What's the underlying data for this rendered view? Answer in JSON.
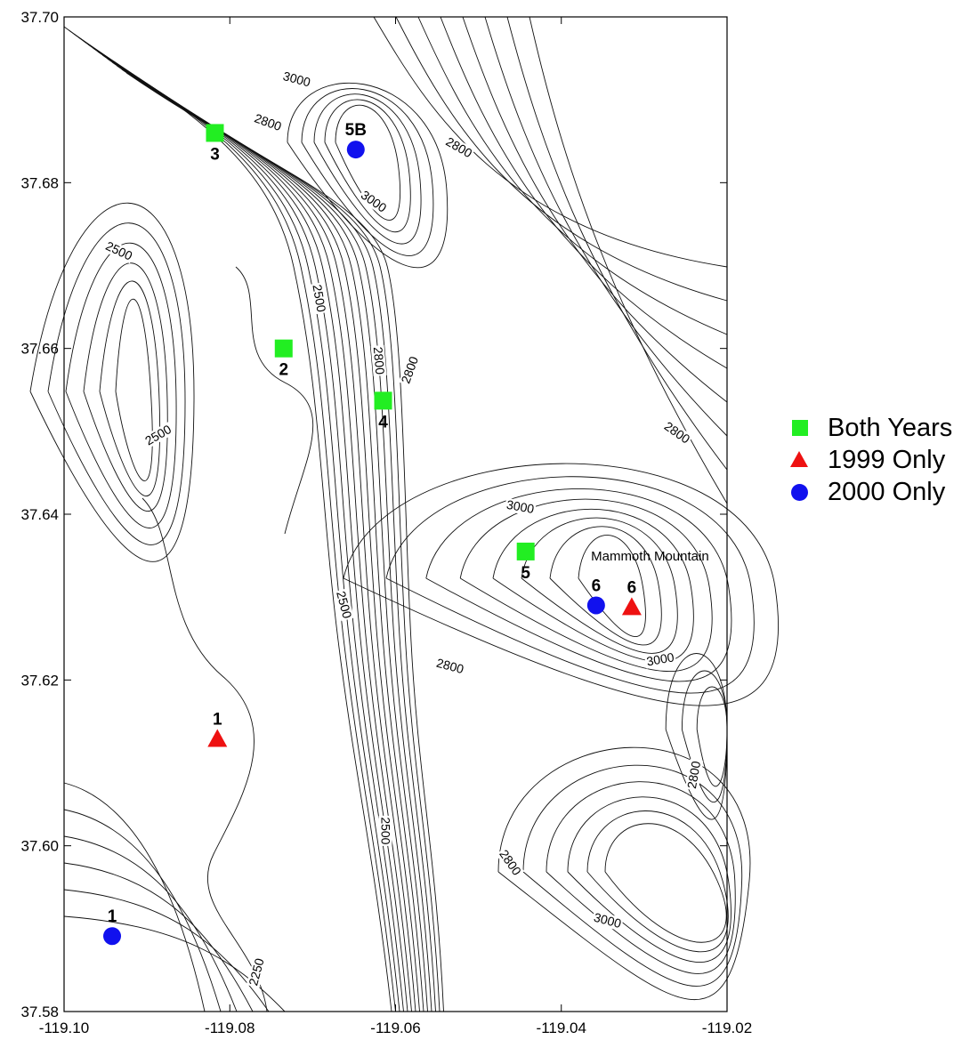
{
  "map": {
    "x_ticks": [
      "-119.10",
      "-119.08",
      "-119.06",
      "-119.04",
      "-119.02"
    ],
    "y_ticks": [
      "37.70",
      "37.68",
      "37.66",
      "37.64",
      "37.62",
      "37.60",
      "37.58"
    ],
    "x_range": [
      -119.1,
      -119.02
    ],
    "y_range": [
      37.58,
      37.7
    ],
    "contour_labels": [
      {
        "text": "3000",
        "lon": -119.072,
        "lat": 37.6922,
        "angle": 15
      },
      {
        "text": "2800",
        "lon": -119.0755,
        "lat": 37.687,
        "angle": 20
      },
      {
        "text": "2800",
        "lon": -119.0525,
        "lat": 37.684,
        "angle": 30
      },
      {
        "text": "3000",
        "lon": -119.0628,
        "lat": 37.6775,
        "angle": 35
      },
      {
        "text": "2500",
        "lon": -119.0935,
        "lat": 37.6715,
        "angle": 25
      },
      {
        "text": "2500",
        "lon": -119.0695,
        "lat": 37.666,
        "angle": 80
      },
      {
        "text": "2800",
        "lon": -119.0623,
        "lat": 37.6585,
        "angle": 85
      },
      {
        "text": "2800",
        "lon": -119.058,
        "lat": 37.6573,
        "angle": -70
      },
      {
        "text": "2500",
        "lon": -119.0885,
        "lat": 37.6493,
        "angle": -30
      },
      {
        "text": "2800",
        "lon": -119.0262,
        "lat": 37.6496,
        "angle": 35
      },
      {
        "text": "3000",
        "lon": -119.045,
        "lat": 37.6406,
        "angle": 10
      },
      {
        "text": "2500",
        "lon": -119.0665,
        "lat": 37.629,
        "angle": 75
      },
      {
        "text": "2800",
        "lon": -119.0535,
        "lat": 37.6214,
        "angle": 15
      },
      {
        "text": "3000",
        "lon": -119.028,
        "lat": 37.6222,
        "angle": -10
      },
      {
        "text": "2800",
        "lon": -119.0237,
        "lat": 37.6085,
        "angle": -80
      },
      {
        "text": "2500",
        "lon": -119.0615,
        "lat": 37.6018,
        "angle": 90
      },
      {
        "text": "2800",
        "lon": -119.0464,
        "lat": 37.5978,
        "angle": 55
      },
      {
        "text": "3000",
        "lon": -119.0345,
        "lat": 37.5907,
        "angle": 15
      },
      {
        "text": "2250",
        "lon": -119.0765,
        "lat": 37.5847,
        "angle": -75
      }
    ],
    "place_label": {
      "text": "Mammoth Mountain",
      "lon": -119.0293,
      "lat": 37.6344
    }
  },
  "sites": [
    {
      "label": "3",
      "type": "both",
      "lon": -119.0818,
      "lat": 37.686,
      "label_pos": "below"
    },
    {
      "label": "5B",
      "type": "2000",
      "lon": -119.0648,
      "lat": 37.684,
      "label_pos": "above"
    },
    {
      "label": "2",
      "type": "both",
      "lon": -119.0735,
      "lat": 37.66,
      "label_pos": "below"
    },
    {
      "label": "4",
      "type": "both",
      "lon": -119.0615,
      "lat": 37.6537,
      "label_pos": "below"
    },
    {
      "label": "5",
      "type": "both",
      "lon": -119.0443,
      "lat": 37.6355,
      "label_pos": "below"
    },
    {
      "label": "6",
      "type": "2000",
      "lon": -119.0358,
      "lat": 37.629,
      "label_pos": "above"
    },
    {
      "label": "6",
      "type": "1999",
      "lon": -119.0315,
      "lat": 37.6288,
      "label_pos": "above"
    },
    {
      "label": "1",
      "type": "1999",
      "lon": -119.0815,
      "lat": 37.6129,
      "label_pos": "above"
    },
    {
      "label": "1",
      "type": "2000",
      "lon": -119.0942,
      "lat": 37.5891,
      "label_pos": "above"
    }
  ],
  "legend": {
    "items": [
      {
        "label": "Both Years",
        "symbol": "square",
        "color": "#22ee22"
      },
      {
        "label": "1999 Only",
        "symbol": "triangle",
        "color": "#ee1111"
      },
      {
        "label": "2000 Only",
        "symbol": "circle",
        "color": "#1111ee"
      }
    ]
  },
  "colors": {
    "both": "#22ee22",
    "1999": "#ee1111",
    "2000": "#1111ee"
  }
}
